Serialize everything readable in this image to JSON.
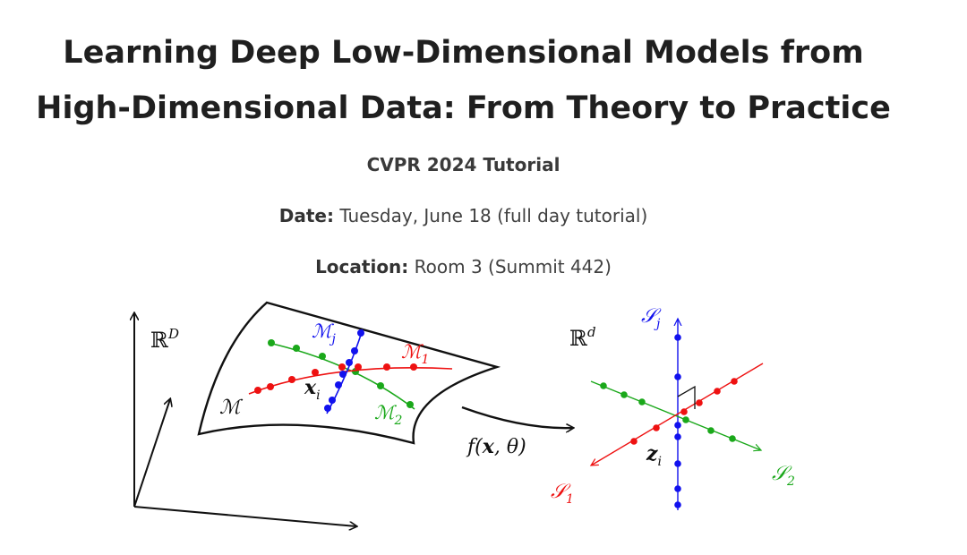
{
  "title": {
    "line1": "Learning Deep Low-Dimensional Models from",
    "line2": "High-Dimensional Data: From Theory to Practice"
  },
  "conference": "CVPR 2024 Tutorial",
  "date": {
    "label": "Date:",
    "value": "Tuesday, June 18 (full day tutorial)"
  },
  "location": {
    "label": "Location:",
    "value": "Room 3 (Summit 442)"
  },
  "figure": {
    "left_space_label": {
      "base": "ℝ",
      "sup": "D"
    },
    "manifold_label": "ℳ",
    "manifold_j": {
      "base": "ℳ",
      "sub": "j"
    },
    "manifold_1": {
      "base": "ℳ",
      "sub": "1"
    },
    "manifold_2": {
      "base": "ℳ",
      "sub": "2"
    },
    "point_x": {
      "base": "𝒙",
      "sub": "i"
    },
    "map_label": {
      "f": "f(",
      "x": "𝒙",
      "rest": ", θ)"
    },
    "right_space_label": {
      "base": "ℝ",
      "sup": "d"
    },
    "subspace_j": {
      "base": "𝒮",
      "sub": "j"
    },
    "subspace_1": {
      "base": "𝒮",
      "sub": "1"
    },
    "subspace_2": {
      "base": "𝒮",
      "sub": "2"
    },
    "point_z": {
      "base": "𝒛",
      "sub": "i"
    },
    "colors": {
      "red": "#ee1111",
      "green": "#1aa81a",
      "blue": "#1111ee",
      "black": "#111111"
    }
  }
}
